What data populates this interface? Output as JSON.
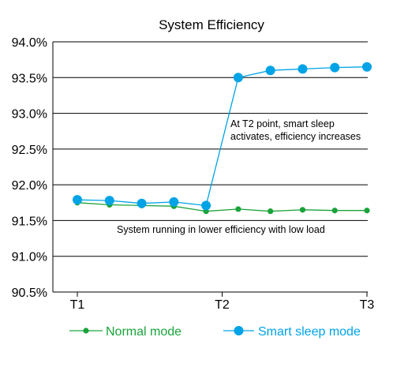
{
  "chart_data": {
    "type": "line",
    "title": "System  Efficiency",
    "xlabel": "",
    "ylabel": "",
    "x_ticks": [
      "T1",
      "T2",
      "T3"
    ],
    "y_ticks": [
      "90.5%",
      "91.0%",
      "91.5%",
      "92.0%",
      "92.5%",
      "93.0%",
      "93.5%",
      "94.0%"
    ],
    "ylim": [
      90.5,
      94.0
    ],
    "grid": "horizontal",
    "legend_position": "bottom",
    "x_points": 10,
    "series": [
      {
        "name": "Normal mode",
        "color": "#1aa33a",
        "marker": "small-circle",
        "values": [
          91.75,
          91.72,
          91.71,
          91.7,
          91.63,
          91.66,
          91.63,
          91.65,
          91.64,
          91.64
        ]
      },
      {
        "name": "Smart sleep mode",
        "color": "#00a3e6",
        "marker": "large-circle",
        "values": [
          91.79,
          91.78,
          91.74,
          91.76,
          91.71,
          93.5,
          93.6,
          93.62,
          93.64,
          93.65
        ]
      }
    ],
    "annotations": [
      {
        "lines": [
          "At T2 point, smart sleep",
          "activates, efficiency increases"
        ],
        "near_x_index": 5,
        "near_y": 92.85
      },
      {
        "lines": [
          "System running in lower efficiency with low load"
        ],
        "near_x_index": 1,
        "near_y": 91.45
      }
    ]
  }
}
